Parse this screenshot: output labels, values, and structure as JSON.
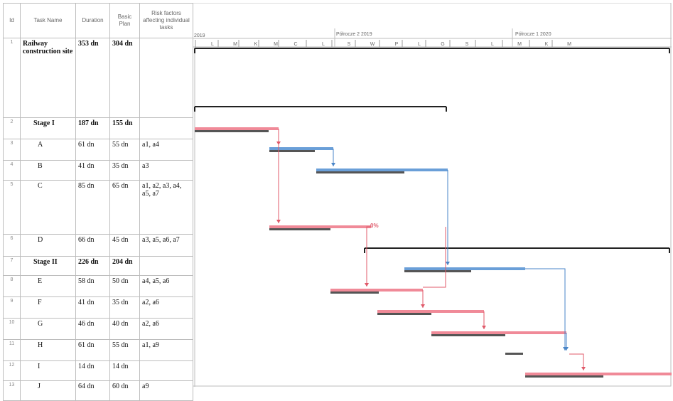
{
  "columns": {
    "id": "Id",
    "task_name": "Task Name",
    "duration": "Duration",
    "basic_plan": "Basic Plan",
    "risk": "Risk factors affecting individual tasks"
  },
  "timeline": {
    "period_1": "2019",
    "period_2": "Półrocze 2 2019",
    "period_3": "Półrocze 1 2020",
    "months": [
      "L",
      "M",
      "K",
      "M",
      "C",
      "L",
      "S",
      "W",
      "P",
      "L",
      "G",
      "S",
      "L",
      "M",
      "K",
      "M"
    ]
  },
  "tasks": [
    {
      "id": "1",
      "name": "Railway construction site",
      "duration": "353 dn",
      "plan": "304 dn",
      "risk": ""
    },
    {
      "id": "2",
      "name": "Stage I",
      "duration": "187 dn",
      "plan": "155 dn",
      "risk": ""
    },
    {
      "id": "3",
      "name": "A",
      "duration": "61 dn",
      "plan": "55 dn",
      "risk": "a1, a4"
    },
    {
      "id": "4",
      "name": "B",
      "duration": "41 dn",
      "plan": "35 dn",
      "risk": "a3"
    },
    {
      "id": "5",
      "name": "C",
      "duration": "85 dn",
      "plan": "65 dn",
      "risk": "a1, a2, a3, a4, a5, a7"
    },
    {
      "id": "6",
      "name": "D",
      "duration": "66 dn",
      "plan": "45 dn",
      "risk": "a3, a5, a6, a7"
    },
    {
      "id": "7",
      "name": "Stage II",
      "duration": "226 dn",
      "plan": "204 dn",
      "risk": ""
    },
    {
      "id": "8",
      "name": "E",
      "duration": "58 dn",
      "plan": "50 dn",
      "risk": "a4, a5, a6"
    },
    {
      "id": "9",
      "name": "F",
      "duration": "41 dn",
      "plan": "35 dn",
      "risk": "a2, a6"
    },
    {
      "id": "10",
      "name": "G",
      "duration": "46 dn",
      "plan": "40 dn",
      "risk": "a2, a6"
    },
    {
      "id": "11",
      "name": "H",
      "duration": "61 dn",
      "plan": "55 dn",
      "risk": "a1, a9"
    },
    {
      "id": "12",
      "name": "I",
      "duration": "14 dn",
      "plan": "14 dn",
      "risk": ""
    },
    {
      "id": "13",
      "name": "J",
      "duration": "64 dn",
      "plan": "60 dn",
      "risk": "a9"
    }
  ],
  "annotation": "0%",
  "colors": {
    "critical": "#f08a98",
    "noncritical": "#6a9fd8",
    "baseline": "#555555",
    "summary": "#222222",
    "link_red": "#e05a6a",
    "link_blue": "#4a86c8"
  }
}
